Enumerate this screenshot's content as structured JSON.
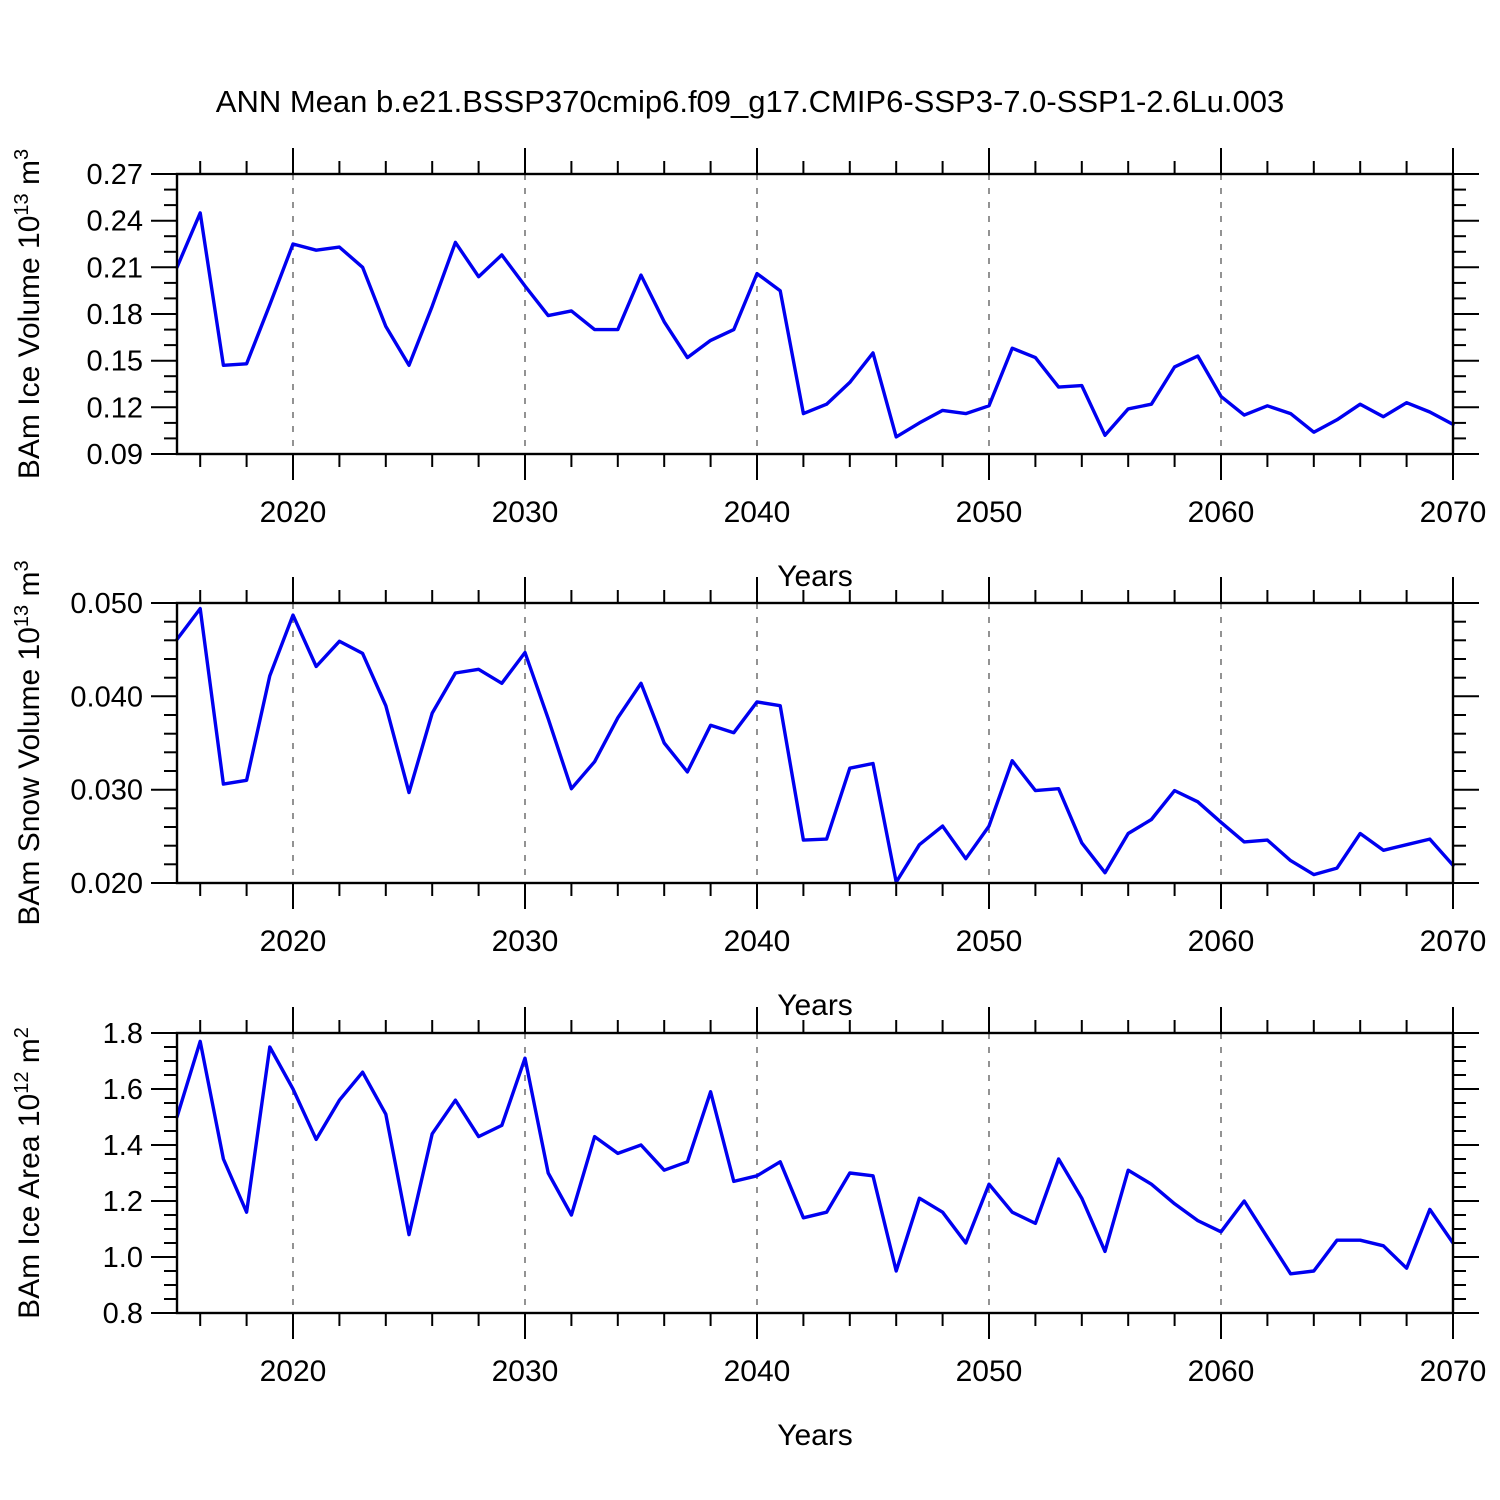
{
  "title": "ANN Mean b.e21.BSSP370cmip6.f09_g17.CMIP6-SSP3-7.0-SSP1-2.6Lu.003",
  "colors": {
    "line": "#0000F0",
    "frame": "#000000",
    "grid": "#787878",
    "text": "#000000",
    "background": "#ffffff"
  },
  "x_axis": {
    "label": "Years",
    "start": 2015,
    "end": 2070,
    "major_ticks": [
      2020,
      2030,
      2040,
      2050,
      2060,
      2070
    ],
    "minor_step_years": 2,
    "gridlines": [
      2020,
      2030,
      2040,
      2050,
      2060
    ]
  },
  "years": [
    2015,
    2016,
    2017,
    2018,
    2019,
    2020,
    2021,
    2022,
    2023,
    2024,
    2025,
    2026,
    2027,
    2028,
    2029,
    2030,
    2031,
    2032,
    2033,
    2034,
    2035,
    2036,
    2037,
    2038,
    2039,
    2040,
    2041,
    2042,
    2043,
    2044,
    2045,
    2046,
    2047,
    2048,
    2049,
    2050,
    2051,
    2052,
    2053,
    2054,
    2055,
    2056,
    2057,
    2058,
    2059,
    2060,
    2061,
    2062,
    2063,
    2064,
    2065,
    2066,
    2067,
    2068,
    2069,
    2070
  ],
  "chart_data": [
    {
      "type": "line",
      "name": "ice-volume",
      "ylabel": {
        "pre": "BAm Ice Volume 10",
        "sup1": "13",
        "mid": " m",
        "sup2": "3"
      },
      "ylim": [
        0.09,
        0.27
      ],
      "ytick_values": [
        0.09,
        0.12,
        0.15,
        0.18,
        0.21,
        0.24,
        0.27
      ],
      "ytick_labels": [
        "0.09",
        "0.12",
        "0.15",
        "0.18",
        "0.21",
        "0.24",
        "0.27"
      ],
      "y_minor_step": 0.01,
      "grid": "vertical-dashed",
      "legend": "none",
      "values": [
        0.21,
        0.245,
        0.147,
        0.148,
        0.186,
        0.225,
        0.221,
        0.223,
        0.21,
        0.172,
        0.147,
        0.185,
        0.226,
        0.204,
        0.218,
        0.198,
        0.179,
        0.182,
        0.17,
        0.17,
        0.205,
        0.175,
        0.152,
        0.163,
        0.17,
        0.206,
        0.195,
        0.116,
        0.122,
        0.136,
        0.155,
        0.101,
        0.11,
        0.118,
        0.116,
        0.121,
        0.158,
        0.152,
        0.133,
        0.134,
        0.102,
        0.119,
        0.122,
        0.146,
        0.153,
        0.127,
        0.115,
        0.121,
        0.116,
        0.104,
        0.112,
        0.122,
        0.114,
        0.123,
        0.117,
        0.109
      ]
    },
    {
      "type": "line",
      "name": "snow-volume",
      "ylabel": {
        "pre": "BAm Snow Volume 10",
        "sup1": "13",
        "mid": " m",
        "sup2": "3"
      },
      "ylim": [
        0.02,
        0.05
      ],
      "ytick_values": [
        0.02,
        0.03,
        0.04,
        0.05
      ],
      "ytick_labels": [
        "0.020",
        "0.030",
        "0.040",
        "0.050"
      ],
      "y_minor_step": 0.002,
      "grid": "vertical-dashed",
      "legend": "none",
      "values": [
        0.0461,
        0.0494,
        0.0306,
        0.031,
        0.0422,
        0.0487,
        0.0432,
        0.0459,
        0.0446,
        0.039,
        0.0297,
        0.0382,
        0.0425,
        0.0429,
        0.0414,
        0.0447,
        0.0376,
        0.0301,
        0.033,
        0.0377,
        0.0414,
        0.035,
        0.0319,
        0.0369,
        0.0361,
        0.0394,
        0.039,
        0.0246,
        0.0247,
        0.0323,
        0.0328,
        0.0201,
        0.0241,
        0.0261,
        0.0226,
        0.0261,
        0.0331,
        0.0299,
        0.0301,
        0.0243,
        0.0211,
        0.0253,
        0.0268,
        0.0299,
        0.0287,
        0.0265,
        0.0244,
        0.0246,
        0.0224,
        0.0209,
        0.0216,
        0.0253,
        0.0235,
        0.0241,
        0.0247,
        0.0219
      ]
    },
    {
      "type": "line",
      "name": "ice-area",
      "ylabel": {
        "pre": "BAm Ice Area 10",
        "sup1": "12",
        "mid": " m",
        "sup2": "2"
      },
      "ylim": [
        0.8,
        1.8
      ],
      "ytick_values": [
        0.8,
        1.0,
        1.2,
        1.4,
        1.6,
        1.8
      ],
      "ytick_labels": [
        "0.8",
        "1.0",
        "1.2",
        "1.4",
        "1.6",
        "1.8"
      ],
      "y_minor_step": 0.05,
      "grid": "vertical-dashed",
      "legend": "none",
      "values": [
        1.5,
        1.77,
        1.35,
        1.16,
        1.75,
        1.6,
        1.42,
        1.56,
        1.66,
        1.51,
        1.08,
        1.44,
        1.56,
        1.43,
        1.47,
        1.71,
        1.3,
        1.15,
        1.43,
        1.37,
        1.4,
        1.31,
        1.34,
        1.59,
        1.27,
        1.29,
        1.34,
        1.14,
        1.16,
        1.3,
        1.29,
        0.95,
        1.21,
        1.16,
        1.05,
        1.26,
        1.16,
        1.12,
        1.35,
        1.21,
        1.02,
        1.31,
        1.26,
        1.19,
        1.13,
        1.09,
        1.2,
        1.07,
        0.94,
        0.95,
        1.06,
        1.06,
        1.04,
        0.96,
        1.17,
        1.05
      ]
    }
  ]
}
